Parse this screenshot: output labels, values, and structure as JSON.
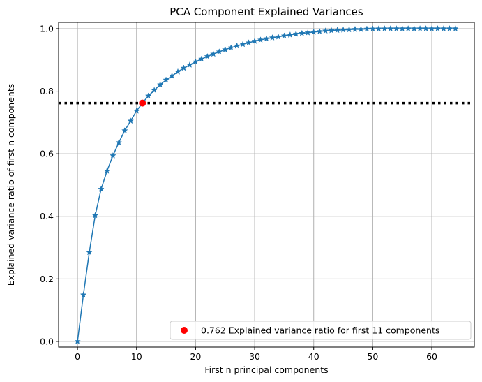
{
  "chart_data": {
    "type": "line",
    "title": "PCA Component Explained Variances",
    "xlabel": "First n principal components",
    "ylabel": "Explained variance ratio of first n components",
    "xlim": [
      -3.2,
      67.2
    ],
    "ylim": [
      -0.018,
      1.02
    ],
    "xticks": [
      0,
      10,
      20,
      30,
      40,
      50,
      60
    ],
    "yticks": [
      0.0,
      0.2,
      0.4,
      0.6,
      0.8,
      1.0
    ],
    "xtick_labels": [
      "0",
      "10",
      "20",
      "30",
      "40",
      "50",
      "60"
    ],
    "ytick_labels": [
      "0.0",
      "0.2",
      "0.4",
      "0.6",
      "0.8",
      "1.0"
    ],
    "grid": true,
    "legend_position": "lower-right",
    "series": [
      {
        "color": "#1f77b4",
        "marker": "star",
        "x": [
          0,
          1,
          2,
          3,
          4,
          5,
          6,
          7,
          8,
          9,
          10,
          11,
          12,
          13,
          14,
          15,
          16,
          17,
          18,
          19,
          20,
          21,
          22,
          23,
          24,
          25,
          26,
          27,
          28,
          29,
          30,
          31,
          32,
          33,
          34,
          35,
          36,
          37,
          38,
          39,
          40,
          41,
          42,
          43,
          44,
          45,
          46,
          47,
          48,
          49,
          50,
          51,
          52,
          53,
          54,
          55,
          56,
          57,
          58,
          59,
          60,
          61,
          62,
          63,
          64
        ],
        "y": [
          0.0,
          0.149,
          0.285,
          0.403,
          0.487,
          0.545,
          0.594,
          0.636,
          0.674,
          0.705,
          0.737,
          0.762,
          0.785,
          0.803,
          0.821,
          0.836,
          0.849,
          0.862,
          0.874,
          0.884,
          0.894,
          0.903,
          0.911,
          0.919,
          0.926,
          0.933,
          0.939,
          0.945,
          0.95,
          0.955,
          0.96,
          0.964,
          0.968,
          0.971,
          0.974,
          0.977,
          0.98,
          0.983,
          0.985,
          0.987,
          0.989,
          0.991,
          0.993,
          0.994,
          0.995,
          0.996,
          0.997,
          0.998,
          0.998,
          0.999,
          0.9993,
          0.9996,
          0.9998,
          0.9999,
          1.0,
          1.0,
          1.0,
          1.0,
          1.0,
          1.0,
          1.0,
          1.0,
          1.0,
          1.0,
          1.0
        ]
      }
    ],
    "highlight": {
      "x": 11,
      "y": 0.762,
      "color": "#ff0000",
      "label": "0.762 Explained variance ratio for first 11 components"
    },
    "threshold_line": {
      "y": 0.762,
      "color": "#000000",
      "style": "dotted"
    }
  }
}
